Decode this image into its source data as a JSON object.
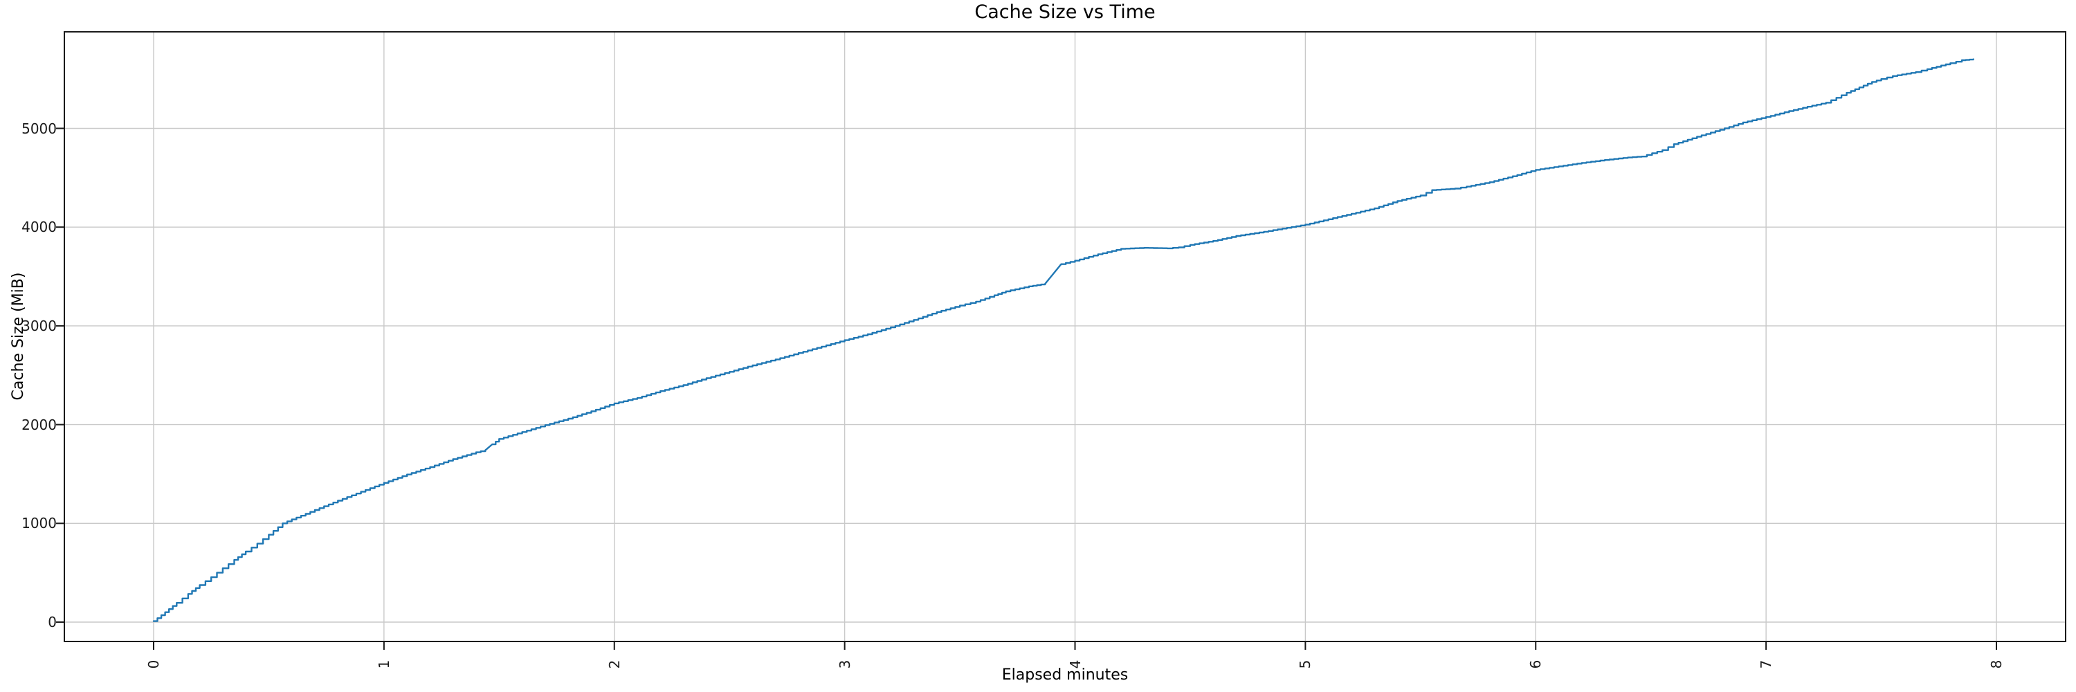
{
  "chart_data": {
    "type": "line",
    "title": "Cache Size vs Time",
    "xlabel": "Elapsed minutes",
    "ylabel": "Cache Size (MiB)",
    "x_ticks": [
      0,
      1,
      2,
      3,
      4,
      5,
      6,
      7,
      8
    ],
    "x_tick_labels": [
      "0",
      "1",
      "2",
      "3",
      "4",
      "5",
      "6",
      "7",
      "8"
    ],
    "y_ticks": [
      0,
      1000,
      2000,
      3000,
      4000,
      5000
    ],
    "y_tick_labels": [
      "0",
      "1000",
      "2000",
      "3000",
      "4000",
      "5000"
    ],
    "x_tick_rotation_deg": 90,
    "xlim": [
      -0.39,
      8.3
    ],
    "ylim": [
      -200,
      5980
    ],
    "grid": true,
    "legend": "none",
    "line_color": "#1f77b4",
    "grid_color": "#c9c9c9",
    "axis_color": "#1a1a1a",
    "background_color": "#ffffff",
    "series": [
      {
        "name": "Cache Size",
        "x": [
          0.0,
          0.05,
          0.1,
          0.15,
          0.2,
          0.25,
          0.3,
          0.35,
          0.4,
          0.45,
          0.5,
          0.56,
          0.6,
          0.7,
          0.8,
          0.9,
          1.0,
          1.1,
          1.2,
          1.3,
          1.4,
          1.44,
          1.47,
          1.5,
          1.6,
          1.7,
          1.8,
          1.9,
          2.0,
          2.1,
          2.2,
          2.3,
          2.4,
          2.5,
          2.6,
          2.7,
          2.8,
          2.9,
          3.0,
          3.1,
          3.2,
          3.3,
          3.4,
          3.5,
          3.57,
          3.65,
          3.7,
          3.8,
          3.87,
          3.94,
          4.0,
          4.1,
          4.2,
          4.3,
          4.4,
          4.45,
          4.5,
          4.6,
          4.7,
          4.8,
          4.9,
          5.0,
          5.1,
          5.2,
          5.3,
          5.4,
          5.5,
          5.55,
          5.65,
          5.7,
          5.8,
          5.9,
          6.0,
          6.1,
          6.2,
          6.3,
          6.4,
          6.46,
          6.55,
          6.6,
          6.7,
          6.82,
          6.9,
          7.0,
          7.1,
          7.2,
          7.26,
          7.35,
          7.46,
          7.5,
          7.55,
          7.65,
          7.7,
          7.8,
          7.85,
          7.9
        ],
        "y": [
          10,
          100,
          195,
          285,
          375,
          455,
          545,
          630,
          715,
          795,
          885,
          1000,
          1040,
          1135,
          1230,
          1320,
          1410,
          1495,
          1570,
          1650,
          1720,
          1740,
          1800,
          1855,
          1925,
          1995,
          2060,
          2135,
          2215,
          2270,
          2340,
          2400,
          2470,
          2535,
          2600,
          2660,
          2725,
          2790,
          2855,
          2915,
          2985,
          3060,
          3140,
          3205,
          3245,
          3310,
          3350,
          3400,
          3425,
          3625,
          3660,
          3725,
          3780,
          3790,
          3785,
          3795,
          3820,
          3860,
          3910,
          3945,
          3985,
          4025,
          4080,
          4135,
          4190,
          4265,
          4320,
          4375,
          4390,
          4410,
          4455,
          4515,
          4580,
          4615,
          4650,
          4680,
          4705,
          4715,
          4780,
          4840,
          4915,
          5000,
          5060,
          5115,
          5175,
          5230,
          5260,
          5360,
          5470,
          5500,
          5530,
          5570,
          5600,
          5660,
          5690,
          5700
        ]
      }
    ]
  }
}
